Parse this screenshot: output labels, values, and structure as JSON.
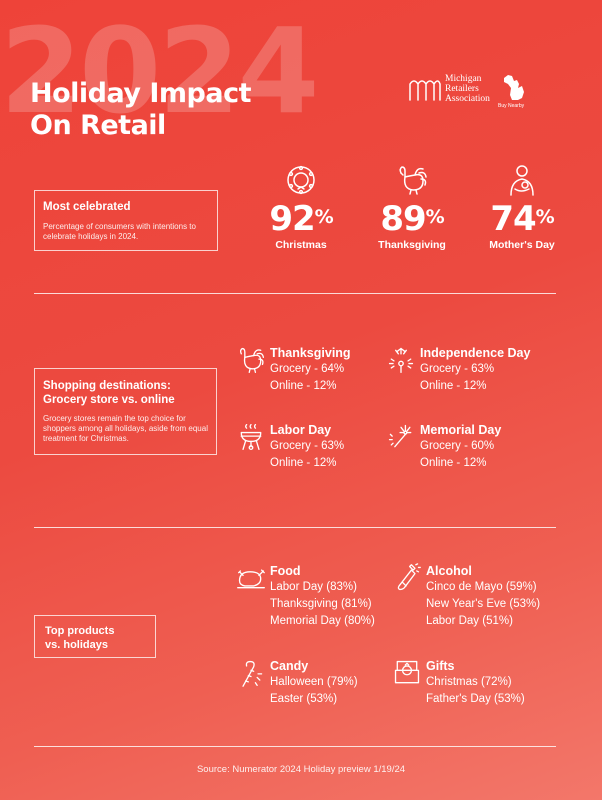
{
  "header": {
    "background_year": "2024",
    "title_line1": "Holiday Impact",
    "title_line2": "On Retail",
    "logo_line1": "Michigan",
    "logo_line2": "Retailers",
    "logo_line3": "Association",
    "badge_label": "Buy Nearby"
  },
  "most_celebrated": {
    "heading": "Most celebrated",
    "description": "Percentage of consumers with intentions to celebrate holidays in 2024.",
    "stats": [
      {
        "value": "92",
        "unit": "%",
        "label": "Christmas",
        "icon": "wreath-icon"
      },
      {
        "value": "89",
        "unit": "%",
        "label": "Thanksgiving",
        "icon": "turkey-icon"
      },
      {
        "value": "74",
        "unit": "%",
        "label": "Mother's Day",
        "icon": "mother-child-icon"
      }
    ]
  },
  "shopping_destinations": {
    "heading_line1": "Shopping destinations:",
    "heading_line2": "Grocery store vs. online",
    "description": "Grocery stores remain the top choice for shoppers among all holidays, aside from equal treatment for Christmas.",
    "holidays": [
      {
        "name": "Thanksgiving",
        "grocery": "Grocery - 64%",
        "online": "Online - 12%",
        "icon": "turkey-icon"
      },
      {
        "name": "Independence Day",
        "grocery": "Grocery - 63%",
        "online": "Online - 12%",
        "icon": "fireworks-icon"
      },
      {
        "name": "Labor Day",
        "grocery": "Grocery - 63%",
        "online": "Online - 12%",
        "icon": "grill-icon"
      },
      {
        "name": "Memorial Day",
        "grocery": "Grocery - 60%",
        "online": "Online - 12%",
        "icon": "fireworks-icon"
      }
    ]
  },
  "top_products": {
    "heading_line1": "Top products",
    "heading_line2": "vs. holidays",
    "categories": [
      {
        "name": "Food",
        "items": [
          "Labor Day (83%)",
          "Thanksgiving (81%)",
          "Memorial Day (80%)"
        ],
        "icon": "roast-chicken-icon"
      },
      {
        "name": "Alcohol",
        "items": [
          "Cinco de Mayo (59%)",
          "New Year's Eve (53%)",
          "Labor Day (51%)"
        ],
        "icon": "champagne-icon"
      },
      {
        "name": "Candy",
        "items": [
          "Halloween (79%)",
          "Easter (53%)"
        ],
        "icon": "candy-cane-icon"
      },
      {
        "name": "Gifts",
        "items": [
          "Christmas (72%)",
          "Father's Day (53%)"
        ],
        "icon": "ring-box-icon"
      }
    ]
  },
  "footer": {
    "source": "Source: Numerator 2024 Holiday preview 1/19/24"
  },
  "colors": {
    "background_top": "#ee4339",
    "background_bottom": "#f3776a",
    "text": "#ffffff"
  }
}
